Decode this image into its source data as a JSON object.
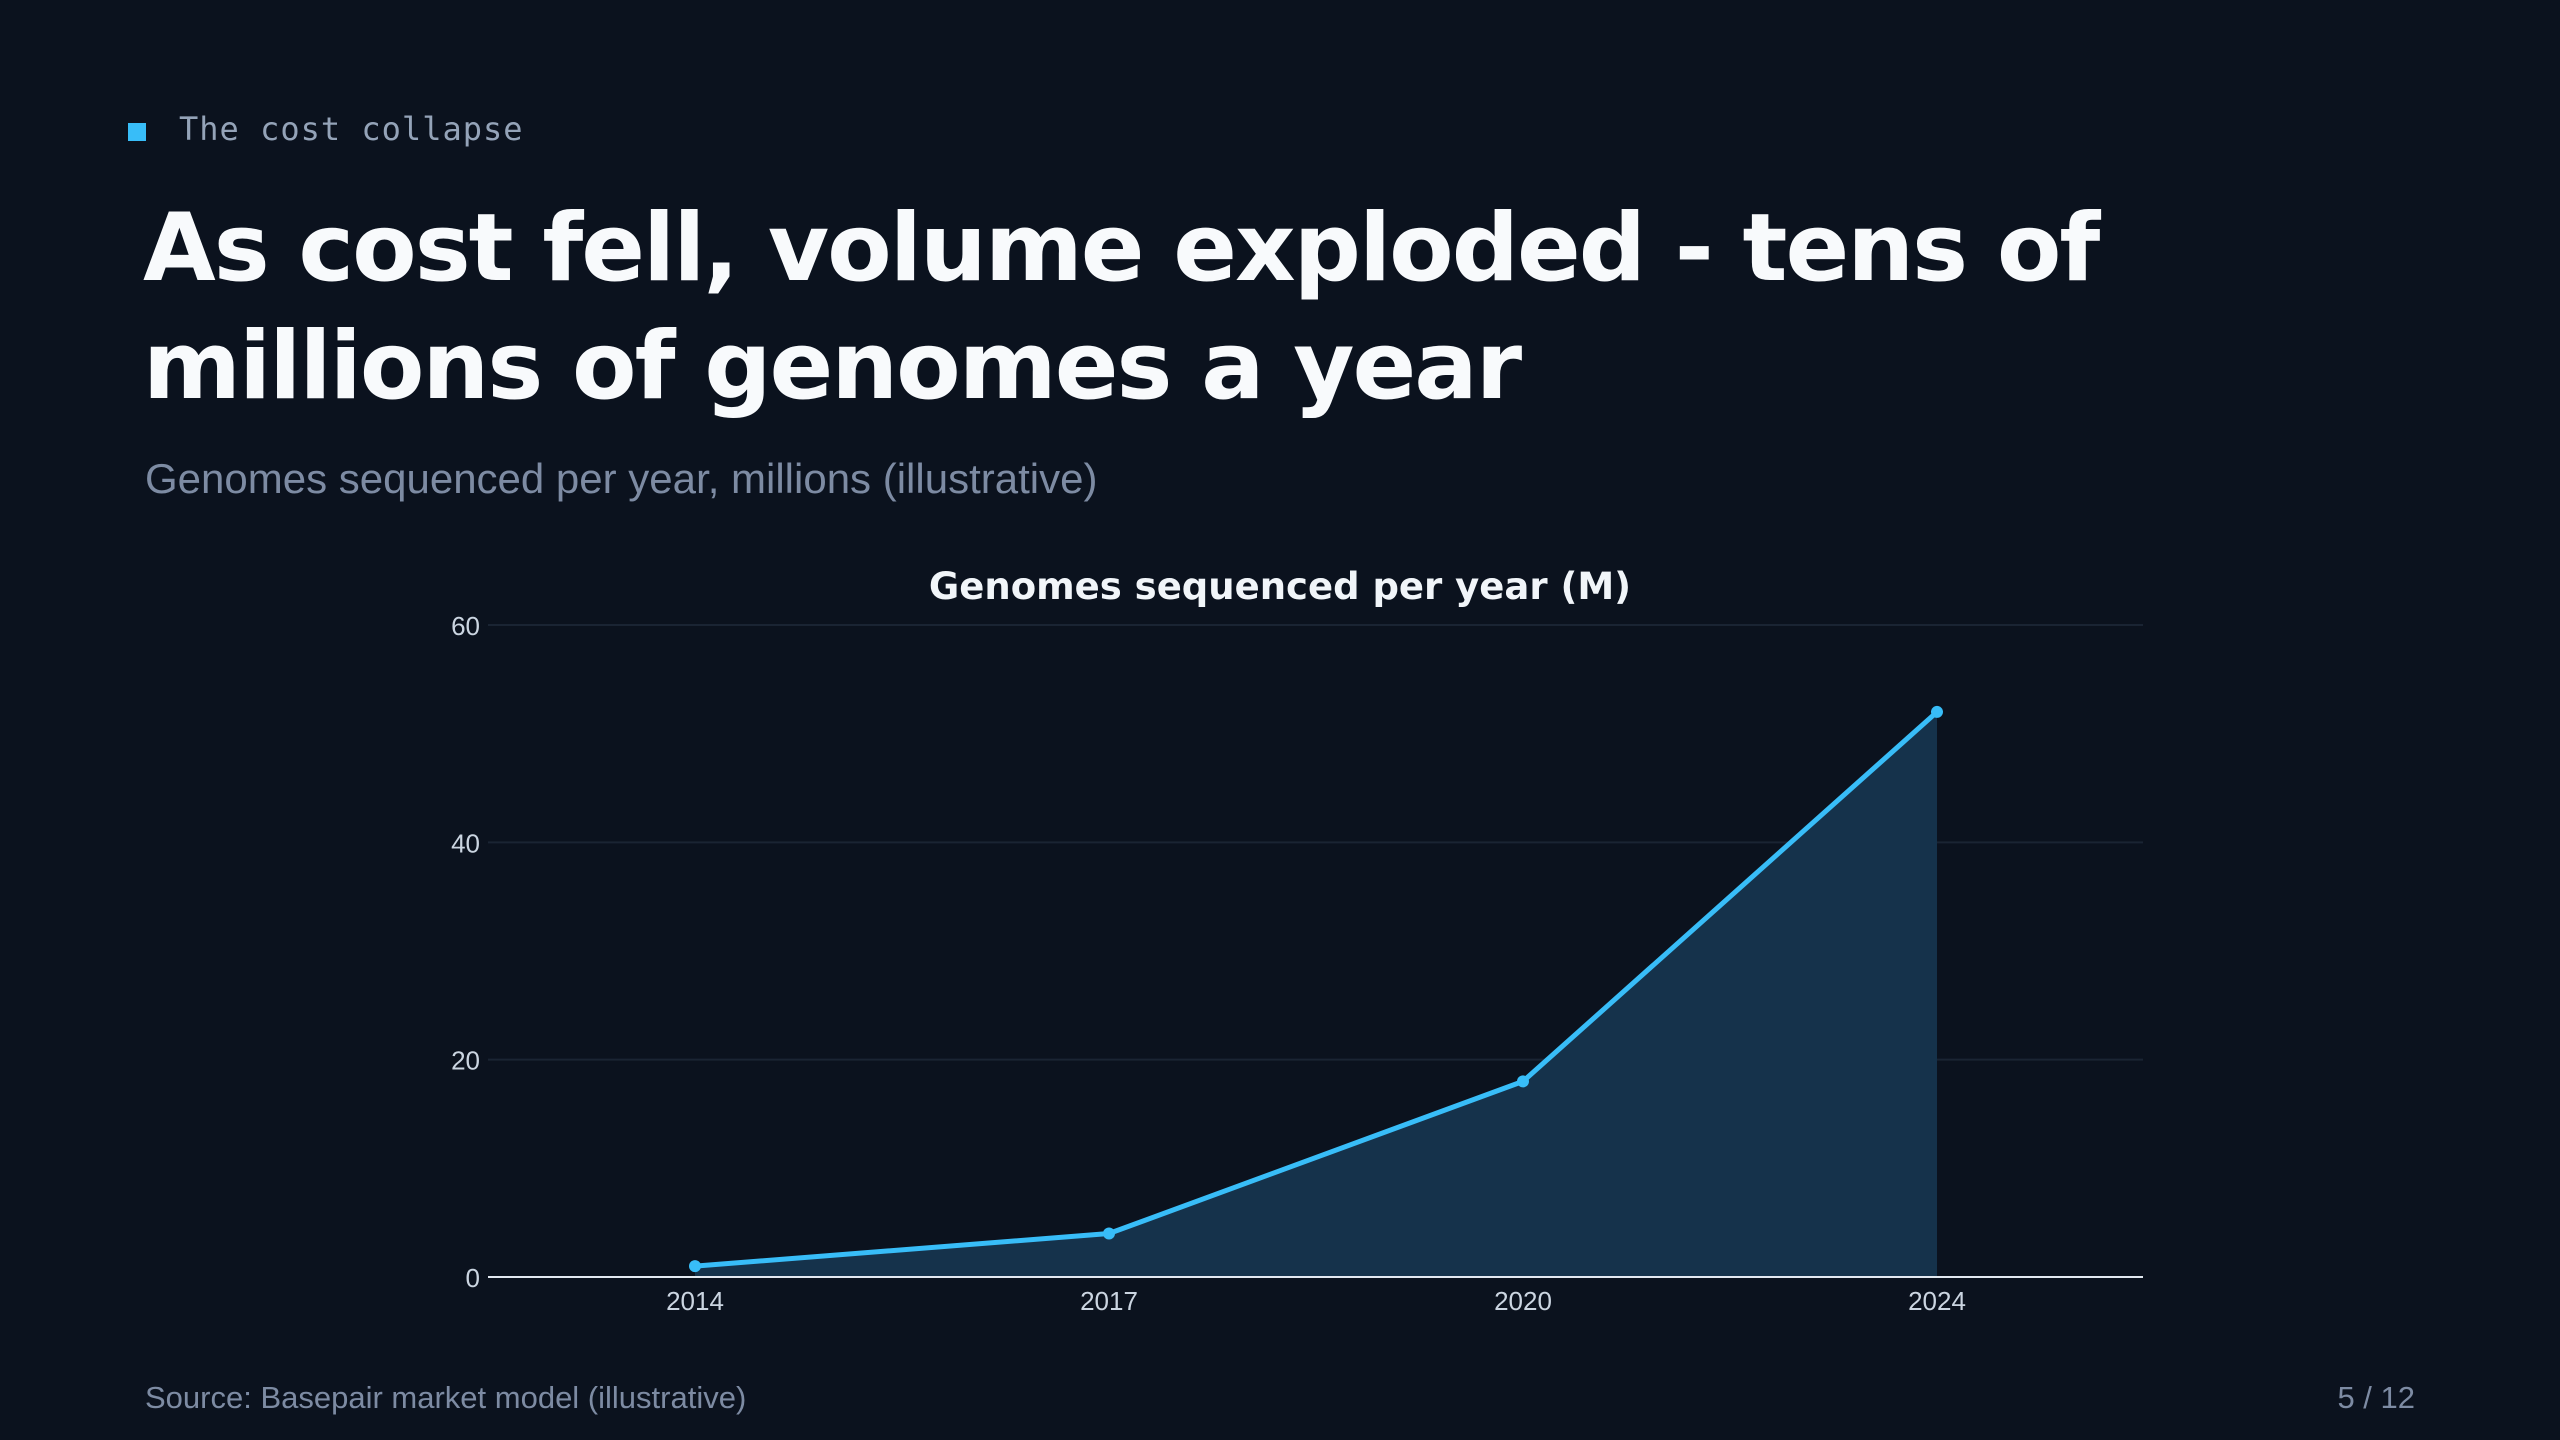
{
  "header": {
    "kicker": "The cost collapse",
    "title": "As cost fell, volume exploded - tens of millions of genomes a year",
    "subtitle": "Genomes sequenced per year, millions (illustrative)"
  },
  "chart_data": {
    "type": "area",
    "title": "Genomes sequenced per year (M)",
    "xlabel": "",
    "ylabel": "",
    "categories": [
      "2014",
      "2017",
      "2020",
      "2024"
    ],
    "series": [
      {
        "values": [
          1,
          4,
          18,
          52
        ]
      }
    ],
    "ylim": [
      0,
      60
    ],
    "yticks": [
      0,
      20,
      40,
      60
    ],
    "grid": true,
    "legend": "none",
    "colors": {
      "line": "#38bdf8",
      "fill": "#15324b",
      "grid": "#1a2433",
      "axis": "#e2e8f0",
      "tick_label": "#cbd5e1"
    }
  },
  "footer": {
    "source": "Source: Basepair market model (illustrative)",
    "page": "5 / 12"
  }
}
